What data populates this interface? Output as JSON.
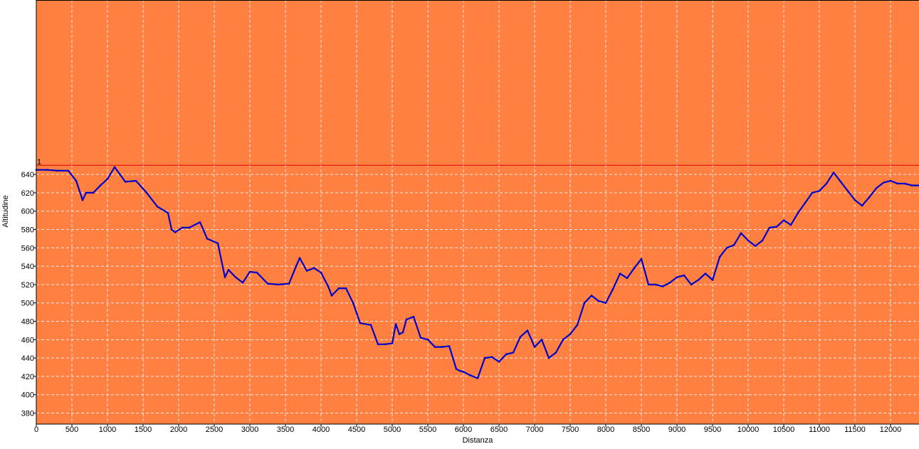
{
  "chart_data": {
    "type": "line",
    "xlabel": "Distanza",
    "ylabel": "Altitudine",
    "xlim": [
      0,
      12400
    ],
    "ylim": [
      368,
      830
    ],
    "x_ticks": [
      0,
      500,
      1000,
      1500,
      2000,
      2500,
      3000,
      3500,
      4000,
      4500,
      5000,
      5500,
      6000,
      6500,
      7000,
      7500,
      8000,
      8500,
      9000,
      9500,
      10000,
      10500,
      11000,
      11500,
      12000
    ],
    "y_ticks": [
      380,
      400,
      420,
      440,
      460,
      480,
      500,
      520,
      540,
      560,
      580,
      600,
      620,
      640
    ],
    "grid": true,
    "colors": {
      "background": "#ff8040",
      "line": "#0000cc",
      "reference": "#dd0000",
      "grid": "#e8e8e8"
    },
    "reference_line": {
      "y": 650,
      "label": "1"
    },
    "series": [
      {
        "x": [
          0,
          150,
          300,
          450,
          560,
          650,
          700,
          800,
          900,
          1000,
          1100,
          1250,
          1400,
          1550,
          1700,
          1850,
          1900,
          1950,
          2050,
          2150,
          2300,
          2400,
          2550,
          2650,
          2700,
          2800,
          2900,
          3000,
          3100,
          3250,
          3400,
          3550,
          3650,
          3700,
          3800,
          3900,
          4000,
          4100,
          4150,
          4250,
          4350,
          4450,
          4550,
          4700,
          4800,
          4900,
          5000,
          5050,
          5100,
          5150,
          5200,
          5300,
          5400,
          5500,
          5600,
          5700,
          5800,
          5900,
          5950,
          6000,
          6100,
          6200,
          6300,
          6400,
          6500,
          6600,
          6700,
          6800,
          6900,
          7000,
          7100,
          7200,
          7300,
          7400,
          7500,
          7600,
          7700,
          7800,
          7900,
          8000,
          8100,
          8200,
          8300,
          8400,
          8500,
          8600,
          8700,
          8800,
          8900,
          9000,
          9100,
          9200,
          9300,
          9400,
          9500,
          9600,
          9700,
          9800,
          9900,
          10000,
          10100,
          10200,
          10300,
          10400,
          10500,
          10600,
          10700,
          10800,
          10900,
          11000,
          11100,
          11200,
          11300,
          11400,
          11500,
          11600,
          11700,
          11800,
          11900,
          12000,
          12100,
          12200,
          12300,
          12400
        ],
        "y": [
          645,
          645,
          644,
          644,
          633,
          612,
          620,
          620,
          628,
          635,
          648,
          632,
          633,
          620,
          605,
          598,
          580,
          577,
          582,
          582,
          588,
          570,
          565,
          528,
          536,
          528,
          522,
          534,
          533,
          521,
          520,
          521,
          540,
          549,
          535,
          538,
          533,
          518,
          508,
          516,
          516,
          500,
          478,
          476,
          455,
          455,
          456,
          477,
          466,
          468,
          482,
          485,
          462,
          460,
          452,
          452,
          453,
          428,
          426,
          425,
          421,
          418,
          440,
          441,
          436,
          444,
          446,
          463,
          470,
          452,
          460,
          440,
          446,
          460,
          466,
          476,
          500,
          508,
          502,
          500,
          515,
          532,
          527,
          538,
          548,
          520,
          520,
          518,
          522,
          528,
          530,
          520,
          525,
          532,
          525,
          550,
          560,
          563,
          576,
          568,
          562,
          568,
          582,
          583,
          590,
          585,
          598,
          609,
          620,
          622,
          630,
          642,
          632,
          622,
          612,
          606,
          615,
          625,
          631,
          633,
          630,
          630,
          628,
          628
        ]
      }
    ]
  }
}
